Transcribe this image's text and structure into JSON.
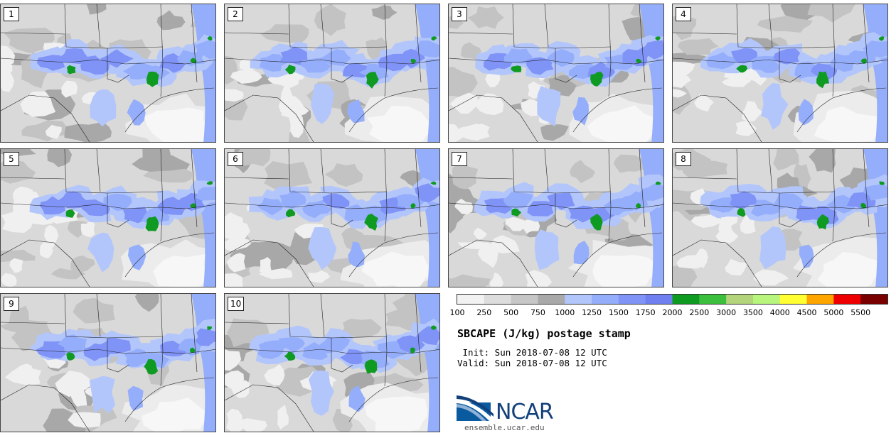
{
  "panels": [
    {
      "label": "1"
    },
    {
      "label": "2"
    },
    {
      "label": "3"
    },
    {
      "label": "4"
    },
    {
      "label": "5"
    },
    {
      "label": "6"
    },
    {
      "label": "7"
    },
    {
      "label": "8"
    },
    {
      "label": "9"
    },
    {
      "label": "10"
    }
  ],
  "colorbar": {
    "colors": [
      "#f2f2f2",
      "#dddddd",
      "#c6c6c6",
      "#a9a9a9",
      "#b3c6fb",
      "#95aefb",
      "#8093f7",
      "#6f7fef",
      "#0f9a22",
      "#3cbf3c",
      "#b3d47a",
      "#b7f57c",
      "#ffff33",
      "#ffa500",
      "#ee0000",
      "#7a0000"
    ],
    "ticks": [
      "100",
      "250",
      "500",
      "750",
      "1000",
      "1250",
      "1500",
      "1750",
      "2000",
      "2500",
      "3000",
      "3500",
      "4000",
      "4500",
      "5000",
      "5500"
    ]
  },
  "title": "SBCAPE (J/kg) postage stamp",
  "init_line": " Init: Sun 2018-07-08 12 UTC",
  "valid_line": "Valid: Sun 2018-07-08 12 UTC",
  "logo": {
    "text": "NCAR",
    "color": "#0a5aa0"
  },
  "website": "ensemble.ucar.edu"
}
